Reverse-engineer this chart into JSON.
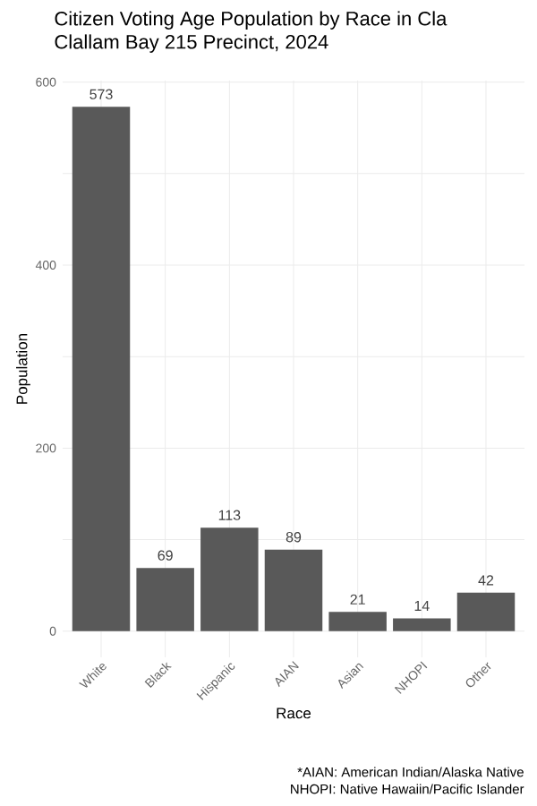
{
  "chart_data": {
    "type": "bar",
    "title": "Citizen Voting Age Population by Race in Cla",
    "subtitle": "Clallam Bay 215 Precinct,  2024",
    "xlabel": "Race",
    "ylabel": "Population",
    "categories": [
      "White",
      "Black",
      "Hispanic",
      "AIAN",
      "Asian",
      "NHOPI",
      "Other"
    ],
    "values": [
      573,
      69,
      113,
      89,
      21,
      14,
      42
    ],
    "color": "#595959",
    "data_labels": true,
    "grid": true,
    "ylim": [
      -28.65,
      601.65
    ],
    "yticks": [
      0,
      {
        "value": 100,
        "label": null
      },
      200,
      {
        "value": 300,
        "label": null
      },
      400,
      {
        "value": 500,
        "label": null
      },
      600
    ],
    "annotations": [
      "*AIAN: American Indian/Alaska Native",
      "NHOPI: Native Hawaiin/Pacific Islander"
    ]
  }
}
